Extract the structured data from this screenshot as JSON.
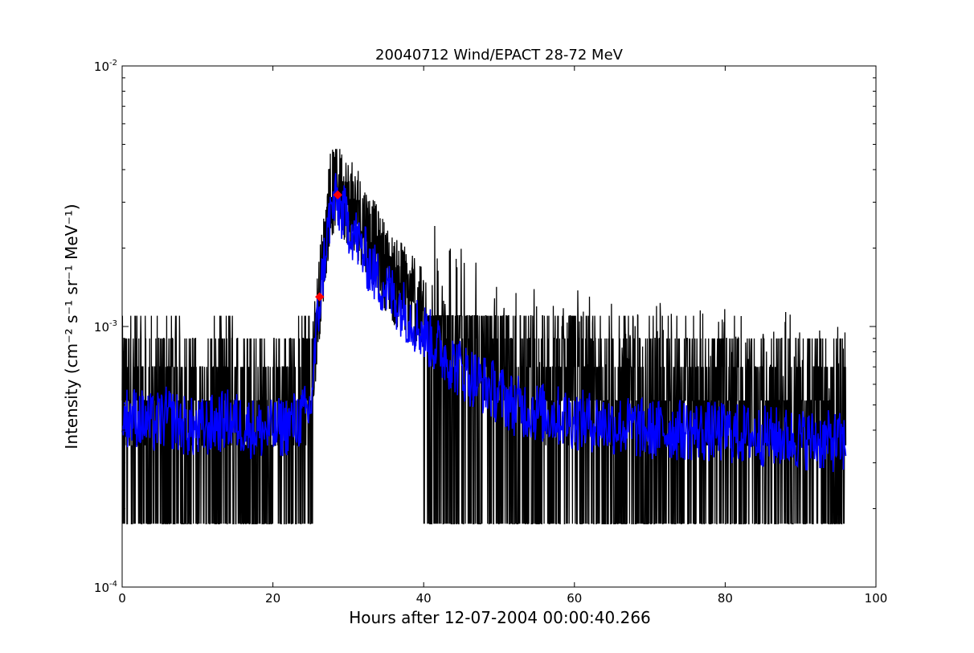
{
  "chart_data": {
    "type": "line",
    "title": "20040712 Wind/EPACT 28-72 MeV",
    "xlabel": "Hours after 12-07-2004 00:00:40.266",
    "ylabel": "Intensity (cm⁻² s⁻¹ sr⁻¹ MeV⁻¹)",
    "x_scale": "linear",
    "y_scale": "log",
    "xlim": [
      0,
      100
    ],
    "ylim": [
      0.0001,
      0.01
    ],
    "x_ticks": [
      0,
      20,
      40,
      60,
      80,
      100
    ],
    "x_tick_labels": [
      "0",
      "20",
      "40",
      "60",
      "80",
      "100"
    ],
    "y_ticks": [
      0.0001,
      0.001,
      0.01
    ],
    "y_tick_labels": [
      {
        "base": "10",
        "exp": "-4"
      },
      {
        "base": "10",
        "exp": "-3"
      },
      {
        "base": "10",
        "exp": "-2"
      }
    ],
    "grid": false,
    "legend": "none",
    "series": [
      {
        "color": "#000000",
        "style": "line",
        "x": [
          0,
          2,
          4,
          6,
          8,
          10,
          12,
          14,
          16,
          18,
          20,
          22,
          24,
          25,
          25.5,
          26,
          26.5,
          27,
          27.5,
          28,
          28.5,
          29,
          30,
          31,
          32,
          33,
          34,
          35,
          36,
          37,
          38,
          40,
          42,
          44,
          46,
          48,
          50,
          52,
          55,
          60,
          65,
          70,
          75,
          80,
          85,
          90,
          95,
          96
        ],
        "y": [
          0.0005,
          0.00055,
          0.0005,
          0.0006,
          0.0005,
          0.00045,
          0.0005,
          0.00055,
          0.0005,
          0.0005,
          0.00045,
          0.0005,
          0.00055,
          0.0006,
          0.0008,
          0.0012,
          0.0016,
          0.0022,
          0.003,
          0.0033,
          0.0035,
          0.0034,
          0.003,
          0.0027,
          0.0025,
          0.0022,
          0.0019,
          0.0017,
          0.0015,
          0.0014,
          0.0013,
          0.0011,
          0.001,
          0.0009,
          0.00082,
          0.00075,
          0.0007,
          0.00065,
          0.0006,
          0.00058,
          0.00055,
          0.00054,
          0.00053,
          0.0005,
          0.00048,
          0.00047,
          0.00045,
          0.00045
        ],
        "y_min": 0.000175,
        "y_max_spikes": 0.0048
      },
      {
        "color": "#0000ff",
        "style": "line",
        "x": [
          0,
          2,
          4,
          6,
          8,
          10,
          12,
          14,
          16,
          18,
          20,
          22,
          24,
          25,
          25.5,
          26,
          26.5,
          27,
          27.5,
          28,
          28.5,
          29,
          30,
          31,
          32,
          33,
          34,
          35,
          36,
          37,
          38,
          40,
          42,
          44,
          46,
          48,
          50,
          52,
          55,
          60,
          65,
          70,
          75,
          80,
          85,
          90,
          95,
          96
        ],
        "y": [
          0.00045,
          0.00045,
          0.00042,
          0.00045,
          0.00042,
          0.0004,
          0.00042,
          0.00044,
          0.00042,
          0.0004,
          0.0004,
          0.00042,
          0.00045,
          0.00048,
          0.00075,
          0.0011,
          0.0015,
          0.002,
          0.0026,
          0.0029,
          0.003,
          0.0028,
          0.0025,
          0.0022,
          0.0019,
          0.0017,
          0.0015,
          0.0014,
          0.0013,
          0.0012,
          0.0011,
          0.00095,
          0.00082,
          0.00072,
          0.00065,
          0.0006,
          0.00055,
          0.0005,
          0.00047,
          0.00044,
          0.00042,
          0.0004,
          0.0004,
          0.00039,
          0.00038,
          0.00037,
          0.00036,
          0.00035
        ]
      }
    ],
    "markers": [
      {
        "x": 26.2,
        "y": 0.0013,
        "color": "#ff0000"
      },
      {
        "x": 28.6,
        "y": 0.0032,
        "color": "#ff0000"
      }
    ]
  }
}
